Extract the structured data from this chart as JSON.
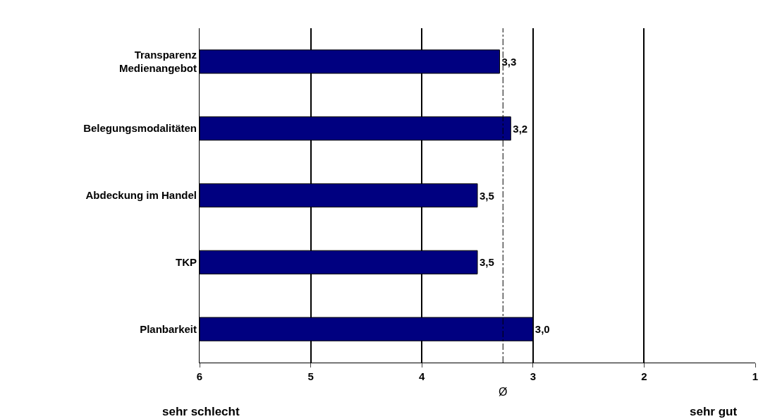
{
  "chart_data": {
    "type": "bar",
    "orientation": "horizontal",
    "categories": [
      "Transparenz\nMedienangebot",
      "Belegungsmodalitäten",
      "Abdeckung im Handel",
      "TKP",
      "Planbarkeit"
    ],
    "base": [
      6,
      6,
      6,
      6,
      6
    ],
    "values": [
      -2.7,
      -2.8,
      -2.5,
      -2.5,
      -3.0
    ],
    "value_labels": [
      "3,3",
      "3,2",
      "3,5",
      "3,5",
      "3,0"
    ],
    "color": "#000080",
    "xlim": [
      6,
      1
    ],
    "xticks": [
      6,
      5,
      4,
      3,
      2,
      1
    ],
    "grid": "x",
    "ref_lines": [
      {
        "axis": "x",
        "value": 3.27,
        "label": "Ø",
        "line_style": "dashdot",
        "color": "#000000"
      }
    ],
    "annotations": [
      "sehr schlecht",
      "sehr gut"
    ]
  }
}
